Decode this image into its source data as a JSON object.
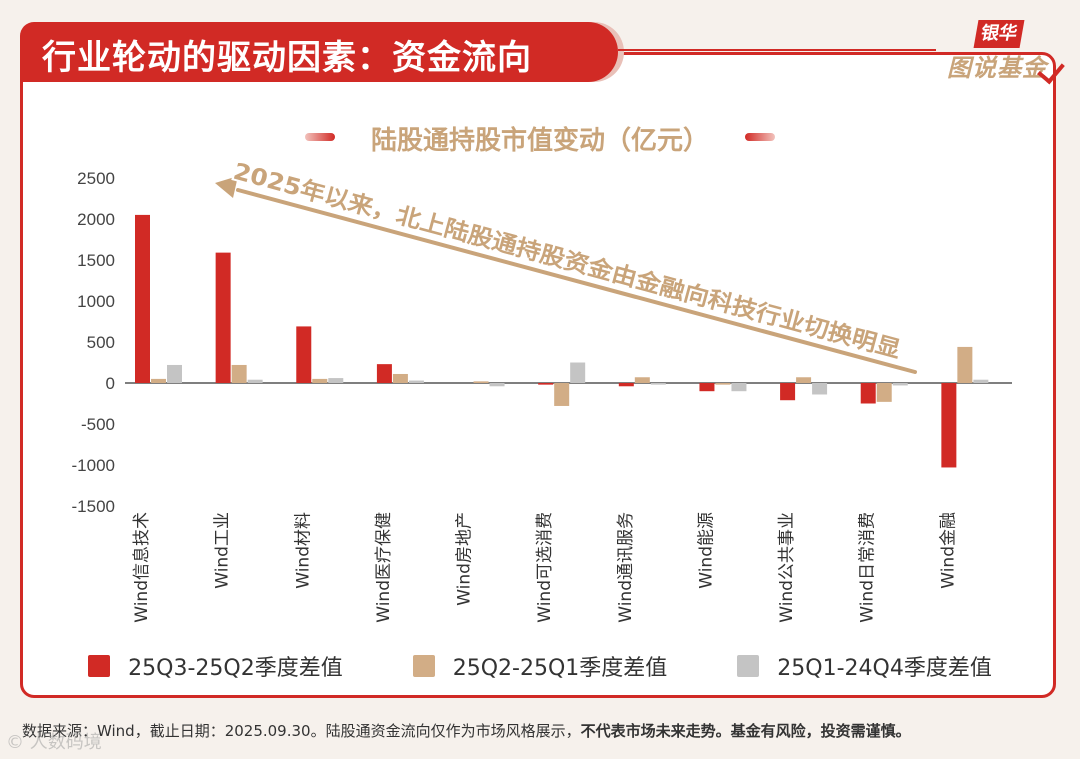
{
  "header": {
    "title": "行业轮动的驱动因素：资金流向",
    "brand_tag": "银华",
    "brand_sub": "图说基金"
  },
  "annotation": "2025年以来，北上陆股通持股资金由金融向科技行业切换明显",
  "footer": {
    "source_text": "数据来源：Wind，截止日期：2025.09.30。陆股通资金流向仅作为市场风格展示，",
    "disclaimer_bold": "不代表市场未来走势。基金有风险，投资需谨慎。"
  },
  "watermark": "© 人数码境",
  "colors": {
    "series1": "#d12a25",
    "series2": "#d2ad86",
    "series3": "#c4c4c4",
    "accent": "#d12a25",
    "gold": "#c9a47a"
  },
  "chart_data": {
    "type": "bar",
    "title": "陆股通持股市值变动（亿元）",
    "categories": [
      "Wind信息技术",
      "Wind工业",
      "Wind材料",
      "Wind医疗保健",
      "Wind房地产",
      "Wind可选消费",
      "Wind通讯服务",
      "Wind能源",
      "Wind公共事业",
      "Wind日常消费",
      "Wind金融"
    ],
    "series": [
      {
        "name": "25Q3-25Q2季度差值",
        "values": [
          2050,
          1590,
          690,
          230,
          0,
          -20,
          -40,
          -100,
          -210,
          -250,
          -1030
        ]
      },
      {
        "name": "25Q2-25Q1季度差值",
        "values": [
          50,
          220,
          50,
          110,
          20,
          -280,
          70,
          -20,
          70,
          -230,
          440
        ]
      },
      {
        "name": "25Q1-24Q4季度差值",
        "values": [
          220,
          40,
          60,
          30,
          -40,
          250,
          -20,
          -100,
          -140,
          -30,
          40
        ]
      }
    ],
    "ylim": [
      -1500,
      2500
    ],
    "yticks": [
      "2500",
      "2000",
      "1500",
      "1000",
      "500",
      "0",
      "-500",
      "-1000",
      "-1500"
    ],
    "grid": false,
    "legend_position": "bottom"
  }
}
